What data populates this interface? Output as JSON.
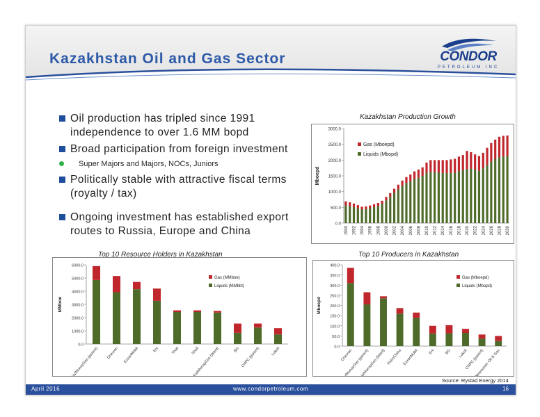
{
  "slide": {
    "title": "Kazakhstan Oil and Gas Sector",
    "logo": {
      "name": "CONDOR",
      "sub": "PETROLEUM INC"
    },
    "bullets": [
      {
        "text": "Oil production has tripled since 1991 independence to over 1.6 MM bopd"
      },
      {
        "text": "Broad participation from foreign investment",
        "subs": [
          "Super Majors and Majors, NOCs, Juniors"
        ]
      },
      {
        "text": "Politically stable with attractive fiscal terms (royalty / tax)"
      },
      {
        "text": "Ongoing investment has established export routes to Russia, Europe and China"
      }
    ],
    "source": "Source: Rystad Energy 2014",
    "footer": {
      "left": "April 2016",
      "center": "www.condorpetroleum.com",
      "page": "16"
    },
    "colors": {
      "gas": "#c0272d",
      "liquids": "#4e6b2a",
      "title": "#2d5aa8",
      "footer": "#2a4f9c"
    }
  },
  "chart_data": [
    {
      "type": "bar",
      "stacked": true,
      "title": "Kazakhstan Production Growth",
      "ylabel": "Mboepd",
      "ylim": [
        0,
        3000
      ],
      "yticks": [
        0,
        500,
        1000,
        1500,
        2000,
        2500,
        3000
      ],
      "ytick_labels": [
        "0.0",
        "500.0",
        "1000.0",
        "1500.0",
        "2000.0",
        "2500.0",
        "3000.0"
      ],
      "xtick_labels": [
        "1990",
        "1992",
        "1994",
        "1996",
        "1998",
        "2000",
        "2002",
        "2004",
        "2006",
        "2008",
        "2010",
        "2012",
        "2014",
        "2016",
        "2018",
        "2020",
        "2022",
        "2024",
        "2026",
        "2028",
        "2030"
      ],
      "categories": [
        "1990",
        "1991",
        "1992",
        "1993",
        "1994",
        "1995",
        "1996",
        "1997",
        "1998",
        "1999",
        "2000",
        "2001",
        "2002",
        "2003",
        "2004",
        "2005",
        "2006",
        "2007",
        "2008",
        "2009",
        "2010",
        "2011",
        "2012",
        "2013",
        "2014",
        "2015",
        "2016",
        "2017",
        "2018",
        "2019",
        "2020",
        "2021",
        "2022",
        "2023",
        "2024",
        "2025",
        "2026",
        "2027",
        "2028",
        "2029",
        "2030"
      ],
      "series": [
        {
          "name": "Liquids (Mbopd)",
          "values": [
            560,
            540,
            510,
            470,
            430,
            440,
            470,
            510,
            540,
            610,
            720,
            830,
            960,
            1070,
            1180,
            1270,
            1320,
            1400,
            1440,
            1500,
            1590,
            1620,
            1610,
            1600,
            1590,
            1580,
            1590,
            1600,
            1650,
            1680,
            1710,
            1730,
            1700,
            1660,
            1740,
            1850,
            1950,
            2030,
            2090,
            2110,
            2130
          ]
        },
        {
          "name": "Gas (Mboepd)",
          "values": [
            130,
            120,
            110,
            100,
            90,
            90,
            90,
            90,
            100,
            100,
            110,
            120,
            130,
            150,
            170,
            190,
            220,
            240,
            260,
            270,
            330,
            380,
            390,
            400,
            410,
            420,
            430,
            440,
            460,
            480,
            580,
            520,
            480,
            470,
            490,
            540,
            590,
            620,
            650,
            660,
            650
          ]
        }
      ],
      "legend": "top-left"
    },
    {
      "type": "bar",
      "stacked": true,
      "title": "Top 10 Resource Holders in Kazakhstan",
      "ylabel": "MMboe",
      "ylim": [
        0,
        6000
      ],
      "yticks": [
        0,
        1000,
        2000,
        3000,
        4000,
        5000,
        6000
      ],
      "ytick_labels": [
        "0.0",
        "1000.0",
        "2000.0",
        "3000.0",
        "4000.0",
        "5000.0",
        "6000.0"
      ],
      "categories": [
        "KazMunayGas (parent)",
        "Chevron",
        "ExxonMobil",
        "Eni",
        "Total",
        "Shell",
        "KazMunayGas (listed)",
        "BG",
        "CNPC (parent)",
        "Lukoil"
      ],
      "series": [
        {
          "name": "Liquids (MMbbl)",
          "values": [
            4850,
            3920,
            4150,
            3270,
            2420,
            2420,
            2380,
            850,
            1250,
            730
          ]
        },
        {
          "name": "Gas (MMboe)",
          "values": [
            1050,
            1230,
            550,
            930,
            130,
            130,
            130,
            700,
            300,
            470
          ]
        }
      ],
      "legend": "top-right"
    },
    {
      "type": "bar",
      "stacked": true,
      "title": "Top 10 Producers in Kazakhstan",
      "ylabel": "Mboepd",
      "ylim": [
        0,
        400
      ],
      "yticks": [
        0,
        50,
        100,
        150,
        200,
        250,
        300,
        350,
        400
      ],
      "ytick_labels": [
        "0.0",
        "50.0",
        "100.0",
        "150.0",
        "200.0",
        "250.0",
        "300.0",
        "350.0",
        "400.0"
      ],
      "categories": [
        "Chevron",
        "KazMunayGas (parent)",
        "KazMunayGas (listed)",
        "PetroChina",
        "ExxonMobil",
        "Eni",
        "BG",
        "Lukoil",
        "CNPC (parent)",
        "Newcomer Oil & Gas"
      ],
      "series": [
        {
          "name": "Liquids (Mbopd)",
          "values": [
            310,
            205,
            235,
            160,
            138,
            62,
            63,
            65,
            37,
            25
          ]
        },
        {
          "name": "Gas (Mboepd)",
          "values": [
            75,
            60,
            10,
            27,
            27,
            38,
            40,
            20,
            20,
            25
          ]
        }
      ],
      "legend": "top-right"
    }
  ]
}
